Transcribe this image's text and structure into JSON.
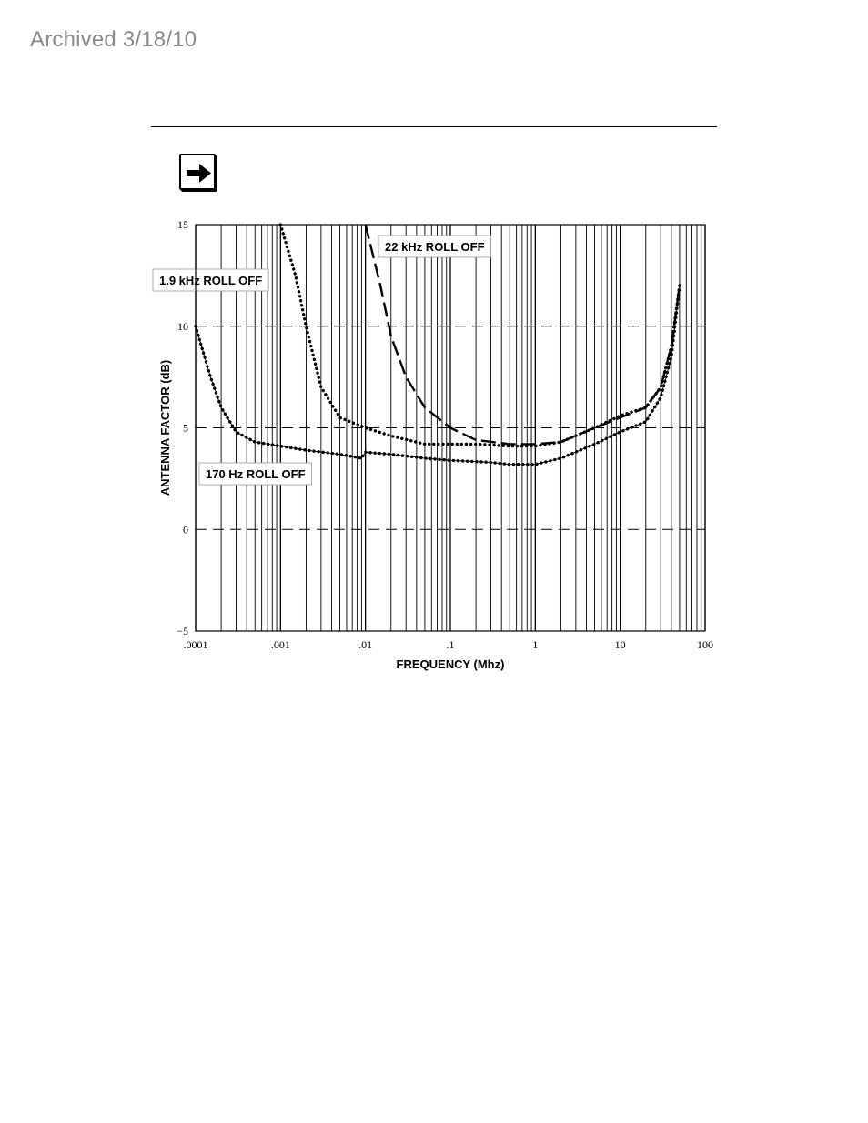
{
  "header": {
    "archived_label": "Archived 3/18/10"
  },
  "icons": {
    "note_icon": "right-arrow-icon"
  },
  "chart_data": {
    "type": "line",
    "title": "",
    "xlabel": "FREQUENCY (Mhz)",
    "ylabel": "ANTENNA FACTOR (dB)",
    "xscale": "log",
    "xlim": [
      0.0001,
      100
    ],
    "ylim": [
      -5,
      15
    ],
    "x_ticks": [
      0.0001,
      0.001,
      0.01,
      0.1,
      1,
      10,
      100
    ],
    "x_tick_labels": [
      ".0001",
      ".001",
      ".01",
      ".1",
      "1",
      "10",
      "100"
    ],
    "y_ticks": [
      -5,
      0,
      5,
      10,
      15
    ],
    "y_tick_labels": [
      "−5",
      "0",
      "5",
      "10",
      "15"
    ],
    "grid": {
      "vertical": "solid",
      "horizontal": "dashed"
    },
    "series": [
      {
        "name": "170 Hz ROLL OFF",
        "style": "dotted",
        "x": [
          0.0001,
          0.00015,
          0.0002,
          0.0003,
          0.0005,
          0.001,
          0.002,
          0.005,
          0.009,
          0.01,
          0.02,
          0.05,
          0.1,
          0.3,
          0.5,
          1,
          2,
          5,
          10,
          20,
          30,
          40,
          50
        ],
        "y": [
          10,
          7.5,
          6,
          4.8,
          4.3,
          4.1,
          3.9,
          3.7,
          3.5,
          3.8,
          3.7,
          3.5,
          3.4,
          3.3,
          3.2,
          3.2,
          3.5,
          4.2,
          4.8,
          5.3,
          6.5,
          8.5,
          12
        ]
      },
      {
        "name": "1.9 kHz ROLL OFF",
        "style": "dotted",
        "x": [
          0.001,
          0.0015,
          0.002,
          0.003,
          0.005,
          0.01,
          0.02,
          0.05,
          0.1,
          0.2,
          0.5,
          1,
          2,
          5,
          10,
          20,
          30,
          40,
          50
        ],
        "y": [
          15,
          12.5,
          10,
          7,
          5.5,
          5,
          4.6,
          4.2,
          4.2,
          4.2,
          4.1,
          4.1,
          4.3,
          5.0,
          5.6,
          6.0,
          7.0,
          9.0,
          12
        ]
      },
      {
        "name": "22 kHz ROLL OFF",
        "style": "dashed",
        "x": [
          0.01,
          0.015,
          0.02,
          0.03,
          0.05,
          0.1,
          0.2,
          0.5,
          1,
          2,
          5,
          10,
          20,
          30,
          40,
          50
        ],
        "y": [
          15,
          12,
          9.5,
          7.5,
          6,
          5,
          4.4,
          4.2,
          4.2,
          4.3,
          5.0,
          5.5,
          6.0,
          7.0,
          9.0,
          12
        ]
      }
    ],
    "annotations": [
      {
        "text": "22 kHz ROLL OFF",
        "series": "22 kHz ROLL OFF"
      },
      {
        "text": "1.9 kHz ROLL OFF",
        "series": "1.9 kHz ROLL OFF"
      },
      {
        "text": "170 Hz ROLL OFF",
        "series": "170 Hz ROLL OFF"
      }
    ]
  }
}
